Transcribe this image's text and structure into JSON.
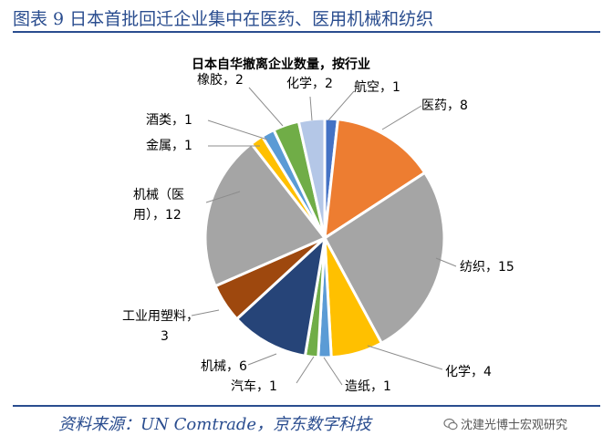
{
  "figure_title": "图表 9 日本首批回迁企业集中在医药、医用机械和纺织",
  "source_text": "资料来源：UN Comtrade，京东数字科技",
  "watermark_text": "沈建光博士宏观研究",
  "chart_data": {
    "type": "pie",
    "title": "日本自华撤离企业数量，按行业",
    "slices": [
      {
        "label": "航空",
        "value": 1,
        "color": "#4472c4"
      },
      {
        "label": "医药",
        "value": 8,
        "color": "#ed7d31"
      },
      {
        "label": "纺织",
        "value": 15,
        "color": "#a5a5a5"
      },
      {
        "label": "化学",
        "value": 4,
        "color": "#ffc000"
      },
      {
        "label": "造纸",
        "value": 1,
        "color": "#5b9bd5"
      },
      {
        "label": "汽车",
        "value": 1,
        "color": "#70ad47"
      },
      {
        "label": "机械",
        "value": 6,
        "color": "#264478"
      },
      {
        "label": "工业用塑料",
        "value": 3,
        "color": "#9e480e"
      },
      {
        "label": "机械（医用）",
        "value": 12,
        "color": "#a5a5a5"
      },
      {
        "label": "金属",
        "value": 1,
        "color": "#ffc000"
      },
      {
        "label": "酒类",
        "value": 1,
        "color": "#5b9bd5"
      },
      {
        "label": "橡胶",
        "value": 2,
        "color": "#70ad47"
      },
      {
        "label": "化学",
        "value": 2,
        "color": "#b4c7e7"
      }
    ],
    "slice_labels": {
      "hangkong": "航空，1",
      "yiyao": "医药，8",
      "fangzhi": "纺织，15",
      "huaxue_a": "化学，4",
      "zaozhi": "造纸，1",
      "qiche": "汽车，1",
      "jixie": "机械，6",
      "gongye_1": "工业用塑料，",
      "gongye_2": "3",
      "jixie_yy_1": "机械（医",
      "jixie_yy_2": "用），12",
      "jinshu": "金属，1",
      "jiulei": "酒类，1",
      "xiangjiao": "橡胶，2",
      "huaxue_b": "化学，2"
    }
  }
}
